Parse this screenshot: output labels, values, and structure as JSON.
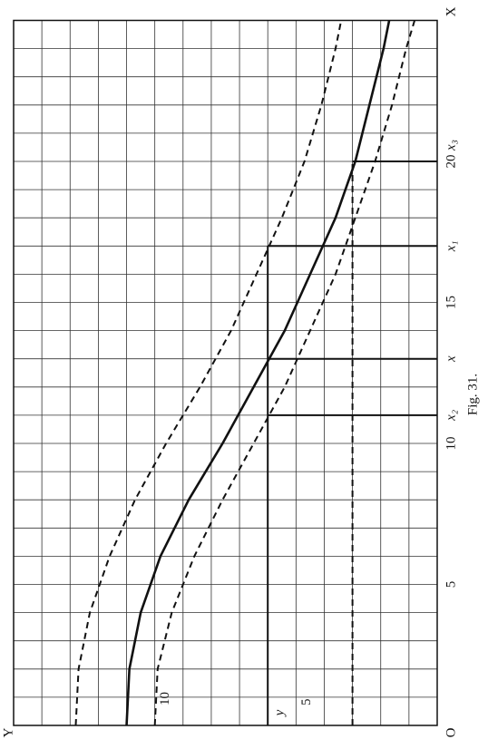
{
  "chart_data": {
    "type": "line",
    "caption": "Fig. 31.",
    "origin_label": "O",
    "x_label": "X",
    "y_label": "Y",
    "xlim": [
      0,
      25
    ],
    "ylim": [
      0,
      15
    ],
    "xticks": [
      5,
      10,
      15,
      20
    ],
    "yticks": [
      5,
      10
    ],
    "xgrid": [
      0,
      1,
      2,
      3,
      4,
      5,
      6,
      7,
      8,
      9,
      10,
      11,
      12,
      13,
      14,
      15,
      16,
      17,
      18,
      19,
      20,
      21,
      22,
      23,
      24,
      25
    ],
    "ygrid": [
      0,
      1,
      2,
      3,
      4,
      5,
      6,
      7,
      8,
      9,
      10,
      11,
      12,
      13,
      14,
      15
    ],
    "x": [
      0,
      2,
      4,
      6,
      8,
      10,
      12,
      14,
      16,
      18,
      20,
      22,
      24,
      25
    ],
    "series": [
      {
        "style": "solid",
        "color": "#111",
        "values": [
          11,
          10.9,
          10.5,
          9.8,
          8.8,
          7.6,
          6.5,
          5.4,
          4.5,
          3.6,
          2.9,
          2.4,
          1.9,
          1.7
        ]
      },
      {
        "style": "dashed",
        "color": "#111",
        "values": [
          12.8,
          12.7,
          12.3,
          11.6,
          10.7,
          9.6,
          8.4,
          7.3,
          6.4,
          5.5,
          4.7,
          4.1,
          3.6,
          3.4
        ]
      },
      {
        "style": "dashed",
        "color": "#111",
        "values": [
          10,
          9.9,
          9.4,
          8.6,
          7.6,
          6.5,
          5.4,
          4.5,
          3.6,
          2.9,
          2.2,
          1.6,
          1.1,
          0.8
        ]
      }
    ],
    "hlines": [
      {
        "y": 6,
        "x": [
          0,
          17
        ],
        "style": "solid",
        "label": "y"
      },
      {
        "y": 3,
        "x": [
          0,
          20
        ],
        "style": "dashed"
      }
    ],
    "vlines": [
      {
        "x": 11,
        "y": [
          0,
          6
        ],
        "label": "x₂"
      },
      {
        "x": 13,
        "y": [
          0,
          6
        ],
        "label": "x"
      },
      {
        "x": 17,
        "y": [
          0,
          6
        ],
        "label": "x₁"
      },
      {
        "x": 20,
        "y": [
          0,
          3
        ],
        "label": "x₃"
      }
    ]
  }
}
